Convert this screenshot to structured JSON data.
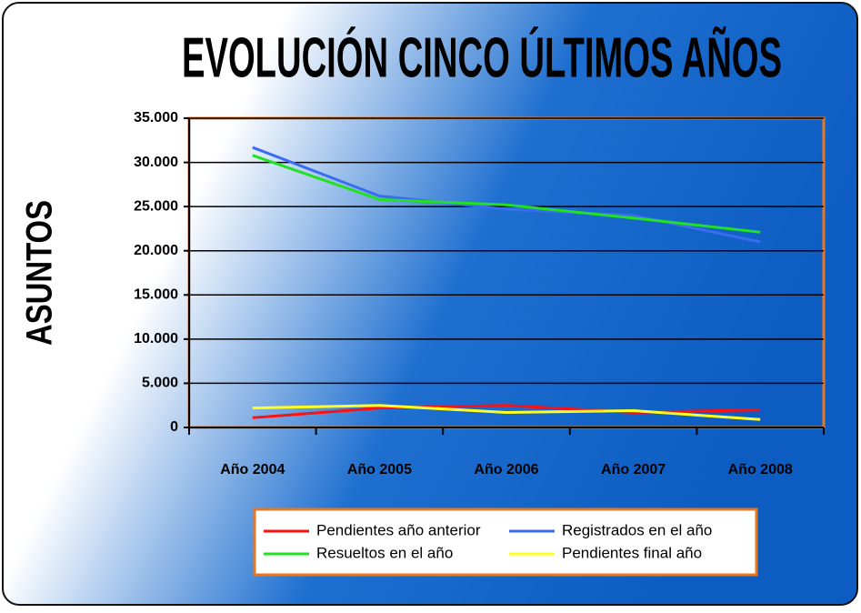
{
  "chart_data": {
    "type": "line",
    "title": "EVOLUCIÓN CINCO ÚLTIMOS AÑOS",
    "y_label": "ASUNTOS",
    "categories": [
      "Año 2004",
      "Año 2005",
      "Año 2006",
      "Año 2007",
      "Año 2008"
    ],
    "series": [
      {
        "name": "Pendientes año anterior",
        "color": "#ff1010",
        "values": [
          1100,
          2200,
          2500,
          1700,
          2000
        ]
      },
      {
        "name": "Registrados en el año",
        "color": "#3a6cf0",
        "values": [
          31700,
          26200,
          24700,
          24000,
          21000
        ]
      },
      {
        "name": "Resueltos en el año",
        "color": "#22e022",
        "values": [
          30800,
          25800,
          25200,
          23700,
          22100
        ]
      },
      {
        "name": "Pendientes final año",
        "color": "#ffff20",
        "values": [
          2200,
          2500,
          1700,
          1900,
          900
        ]
      }
    ],
    "ylim": [
      0,
      35000
    ],
    "yticks": [
      0,
      {
        "value": 5000,
        "label": "5.000"
      },
      {
        "value": 10000,
        "label": "10.000"
      },
      {
        "value": 15000,
        "label": "15.000"
      },
      {
        "value": 20000,
        "label": "20.000"
      },
      {
        "value": 25000,
        "label": "25.000"
      },
      {
        "value": 30000,
        "label": "30.000"
      },
      {
        "value": 35000,
        "label": "35.000"
      }
    ],
    "grid": true,
    "legend": "bottom"
  }
}
